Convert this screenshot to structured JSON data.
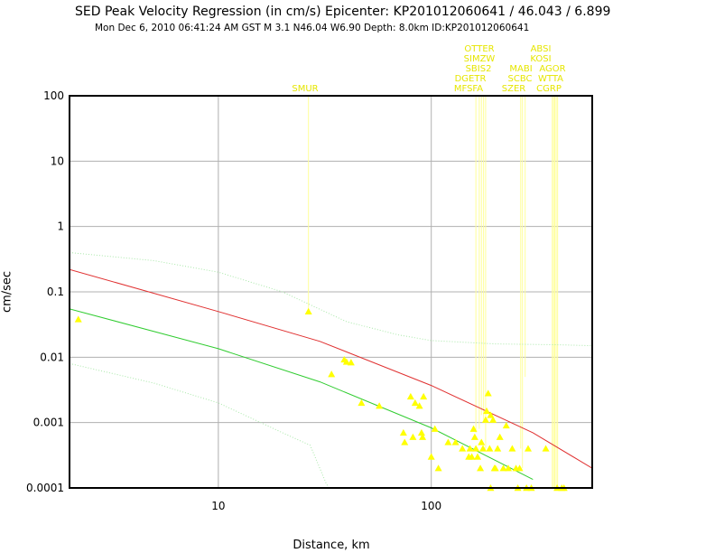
{
  "header": {
    "title": "SED Peak Velocity Regression (in cm/s) Epicenter: KP201012060641 / 46.043 / 6.899",
    "subtitle": "Mon Dec  6, 2010 06:41:24 AM GST    M 3.1    N46.04 W6.90   Depth: 8.0km   ID:KP201012060641"
  },
  "colors": {
    "regression_red": "#e03030",
    "regression_green": "#30cc30",
    "confidence_light_green": "#a8e8a8",
    "station": "#ffff00",
    "station_label": "#e6e600",
    "grid": "#b0b0b0"
  },
  "chart_data": {
    "type": "scatter",
    "title": "SED Peak Velocity Regression (in cm/s) Epicenter: KP201012060641 / 46.043 / 6.899",
    "xlabel": "Distance, km",
    "ylabel": "cm/sec",
    "x_scale": "log",
    "y_scale": "log",
    "xlim": [
      2,
      570
    ],
    "ylim": [
      0.0001,
      100
    ],
    "grid": true,
    "x_ticks": [
      {
        "value": 10,
        "label": "10"
      },
      {
        "value": 100,
        "label": "100"
      }
    ],
    "y_ticks": [
      {
        "value": 100,
        "label": "100"
      },
      {
        "value": 10,
        "label": "10"
      },
      {
        "value": 1,
        "label": "1"
      },
      {
        "value": 0.1,
        "label": "0.1"
      },
      {
        "value": 0.01,
        "label": "0.01"
      },
      {
        "value": 0.001,
        "label": "0.001"
      },
      {
        "value": 0.0001,
        "label": "0.0001"
      }
    ],
    "regression_lines": [
      {
        "color": "#e03030",
        "points": [
          [
            2,
            0.22
          ],
          [
            10,
            0.05
          ],
          [
            30,
            0.0175
          ],
          [
            100,
            0.0037
          ],
          [
            300,
            0.0007
          ],
          [
            570,
            0.0002
          ]
        ]
      },
      {
        "color": "#30cc30",
        "points": [
          [
            2,
            0.055
          ],
          [
            10,
            0.0135
          ],
          [
            30,
            0.0042
          ],
          [
            100,
            0.00083
          ],
          [
            300,
            0.000135
          ]
        ]
      },
      {
        "color": "#a8e8a8",
        "style": "dotted",
        "points": [
          [
            2,
            0.4
          ],
          [
            5,
            0.3
          ],
          [
            10,
            0.2
          ],
          [
            20,
            0.1
          ],
          [
            40,
            0.035
          ],
          [
            70,
            0.022
          ],
          [
            100,
            0.018
          ],
          [
            200,
            0.016
          ],
          [
            400,
            0.0155
          ],
          [
            570,
            0.015
          ]
        ]
      },
      {
        "color": "#a8e8a8",
        "style": "dotted",
        "points": [
          [
            2,
            0.008
          ],
          [
            5,
            0.004
          ],
          [
            10,
            0.002
          ],
          [
            20,
            0.0007
          ],
          [
            27,
            0.00045
          ],
          [
            32,
            0.00012
          ],
          [
            33,
            0.0001
          ]
        ]
      }
    ],
    "stations": [
      {
        "name": "SMUR",
        "x": 26.5,
        "y": 0.05
      },
      {
        "name": "OTTER",
        "x": 162,
        "y": 0.0007
      },
      {
        "name": "SIMZW",
        "x": 168,
        "y": 0.0008
      },
      {
        "name": "SBIS2",
        "x": 172,
        "y": 0.0013
      },
      {
        "name": "DGETR",
        "x": 176,
        "y": 0.0011
      },
      {
        "name": "MFSFA",
        "x": 180,
        "y": 0.0004
      },
      {
        "name": "MABI",
        "x": 263,
        "y": 0.0004
      },
      {
        "name": "SCBC",
        "x": 268,
        "y": 0.0002
      },
      {
        "name": "SZER",
        "x": 276,
        "y": 0.005
      },
      {
        "name": "ABSI",
        "x": 370,
        "y": 0.0001
      },
      {
        "name": "KOSI",
        "x": 380,
        "y": 0.0001
      },
      {
        "name": "AGOR",
        "x": 392,
        "y": 0.0001
      },
      {
        "name": "WTTA",
        "x": 386,
        "y": 0.0001
      },
      {
        "name": "CGRP",
        "x": 375,
        "y": 0.0001
      }
    ],
    "points": [
      [
        2.2,
        0.038
      ],
      [
        26.5,
        0.05
      ],
      [
        34,
        0.0055
      ],
      [
        39,
        0.0092
      ],
      [
        40,
        0.0085
      ],
      [
        42,
        0.0083
      ],
      [
        47,
        0.002
      ],
      [
        57,
        0.0018
      ],
      [
        74,
        0.0007
      ],
      [
        75,
        0.0005
      ],
      [
        80,
        0.0025
      ],
      [
        82,
        0.0006
      ],
      [
        84,
        0.002
      ],
      [
        88,
        0.0018
      ],
      [
        90,
        0.0007
      ],
      [
        91,
        0.0006
      ],
      [
        92,
        0.0025
      ],
      [
        100,
        0.0003
      ],
      [
        104,
        0.0008
      ],
      [
        108,
        0.0002
      ],
      [
        120,
        0.0005
      ],
      [
        130,
        0.0005
      ],
      [
        140,
        0.0004
      ],
      [
        150,
        0.0003
      ],
      [
        152,
        0.0004
      ],
      [
        155,
        0.0003
      ],
      [
        158,
        0.0008
      ],
      [
        160,
        0.0006
      ],
      [
        162,
        0.0004
      ],
      [
        165,
        0.0003
      ],
      [
        170,
        0.0002
      ],
      [
        172,
        0.0005
      ],
      [
        175,
        0.0004
      ],
      [
        180,
        0.0011
      ],
      [
        182,
        0.0015
      ],
      [
        185,
        0.0028
      ],
      [
        188,
        0.0004
      ],
      [
        190,
        0.0013
      ],
      [
        195,
        0.0011
      ],
      [
        198,
        0.0002
      ],
      [
        200,
        0.0002
      ],
      [
        205,
        0.0004
      ],
      [
        210,
        0.0006
      ],
      [
        218,
        0.0002
      ],
      [
        225,
        0.0009
      ],
      [
        230,
        0.0002
      ],
      [
        240,
        0.0004
      ],
      [
        250,
        0.0002
      ],
      [
        260,
        0.0002
      ],
      [
        285,
        0.0004
      ],
      [
        345,
        0.0004
      ],
      [
        190,
        0.0001
      ],
      [
        255,
        0.0001
      ],
      [
        280,
        0.0001
      ],
      [
        295,
        0.0001
      ],
      [
        390,
        0.0001
      ],
      [
        410,
        0.0001
      ],
      [
        420,
        0.0001
      ]
    ]
  }
}
